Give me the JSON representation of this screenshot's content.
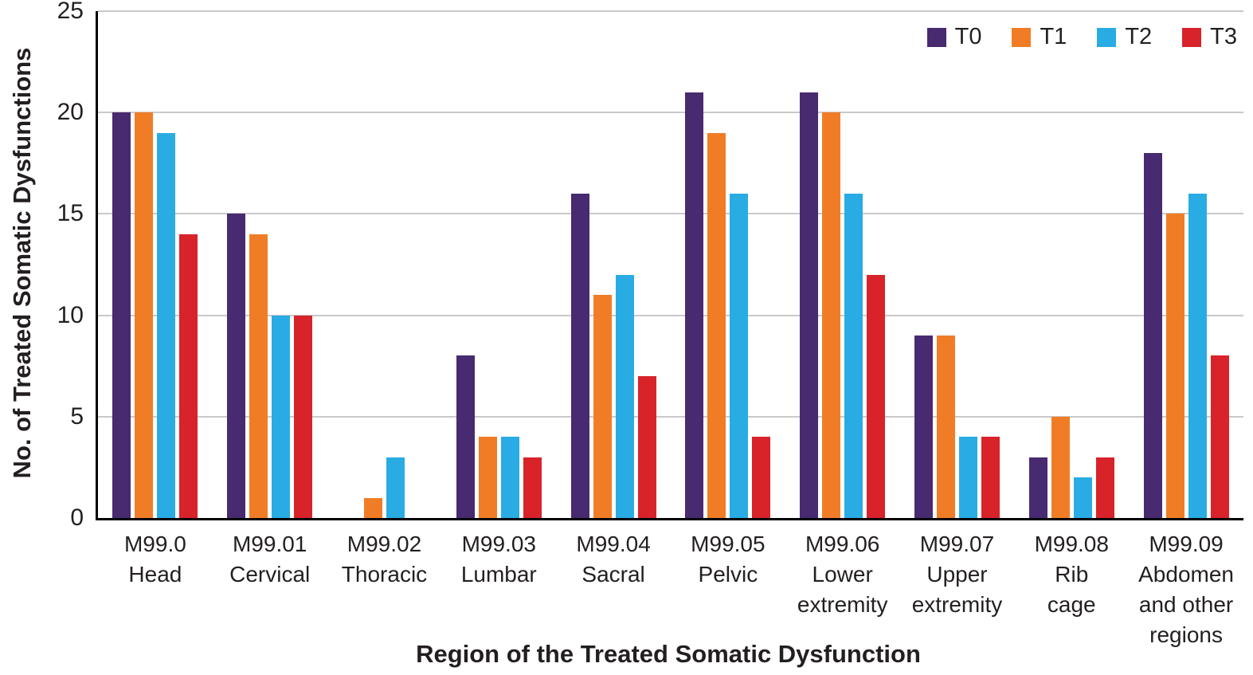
{
  "figure": {
    "background": "#ffffff",
    "axis_color": "#000000",
    "grid_color": "#c9c9c9",
    "text_color": "#231f20"
  },
  "chart_data": {
    "type": "bar",
    "title": "",
    "xlabel": "Region of the Treated Somatic Dysfunction",
    "ylabel": "No. of Treated Somatic Dysfunctions",
    "ylim": [
      0,
      25
    ],
    "yticks": [
      0,
      5,
      10,
      15,
      20,
      25
    ],
    "grid": true,
    "legend_position": "top-right",
    "categories": [
      {
        "lines": [
          "M99.0",
          "Head"
        ]
      },
      {
        "lines": [
          "M99.01",
          "Cervical"
        ]
      },
      {
        "lines": [
          "M99.02",
          "Thoracic"
        ]
      },
      {
        "lines": [
          "M99.03",
          "Lumbar"
        ]
      },
      {
        "lines": [
          "M99.04",
          "Sacral"
        ]
      },
      {
        "lines": [
          "M99.05",
          "Pelvic"
        ]
      },
      {
        "lines": [
          "M99.06",
          "Lower",
          "extremity"
        ]
      },
      {
        "lines": [
          "M99.07",
          "Upper",
          "extremity"
        ]
      },
      {
        "lines": [
          "M99.08",
          "Rib",
          "cage"
        ]
      },
      {
        "lines": [
          "M99.09",
          "Abdomen",
          "and other",
          "regions"
        ]
      }
    ],
    "series": [
      {
        "name": "T0",
        "color": "#482a70",
        "values": [
          20,
          15,
          0,
          8,
          16,
          21,
          21,
          9,
          3,
          18
        ]
      },
      {
        "name": "T1",
        "color": "#f07d26",
        "values": [
          20,
          14,
          1,
          4,
          11,
          19,
          20,
          9,
          5,
          15
        ]
      },
      {
        "name": "T2",
        "color": "#29ace3",
        "values": [
          19,
          10,
          3,
          4,
          12,
          16,
          16,
          4,
          2,
          16
        ]
      },
      {
        "name": "T3",
        "color": "#d8232a",
        "values": [
          14,
          10,
          0,
          3,
          7,
          4,
          12,
          4,
          3,
          8
        ]
      }
    ]
  }
}
